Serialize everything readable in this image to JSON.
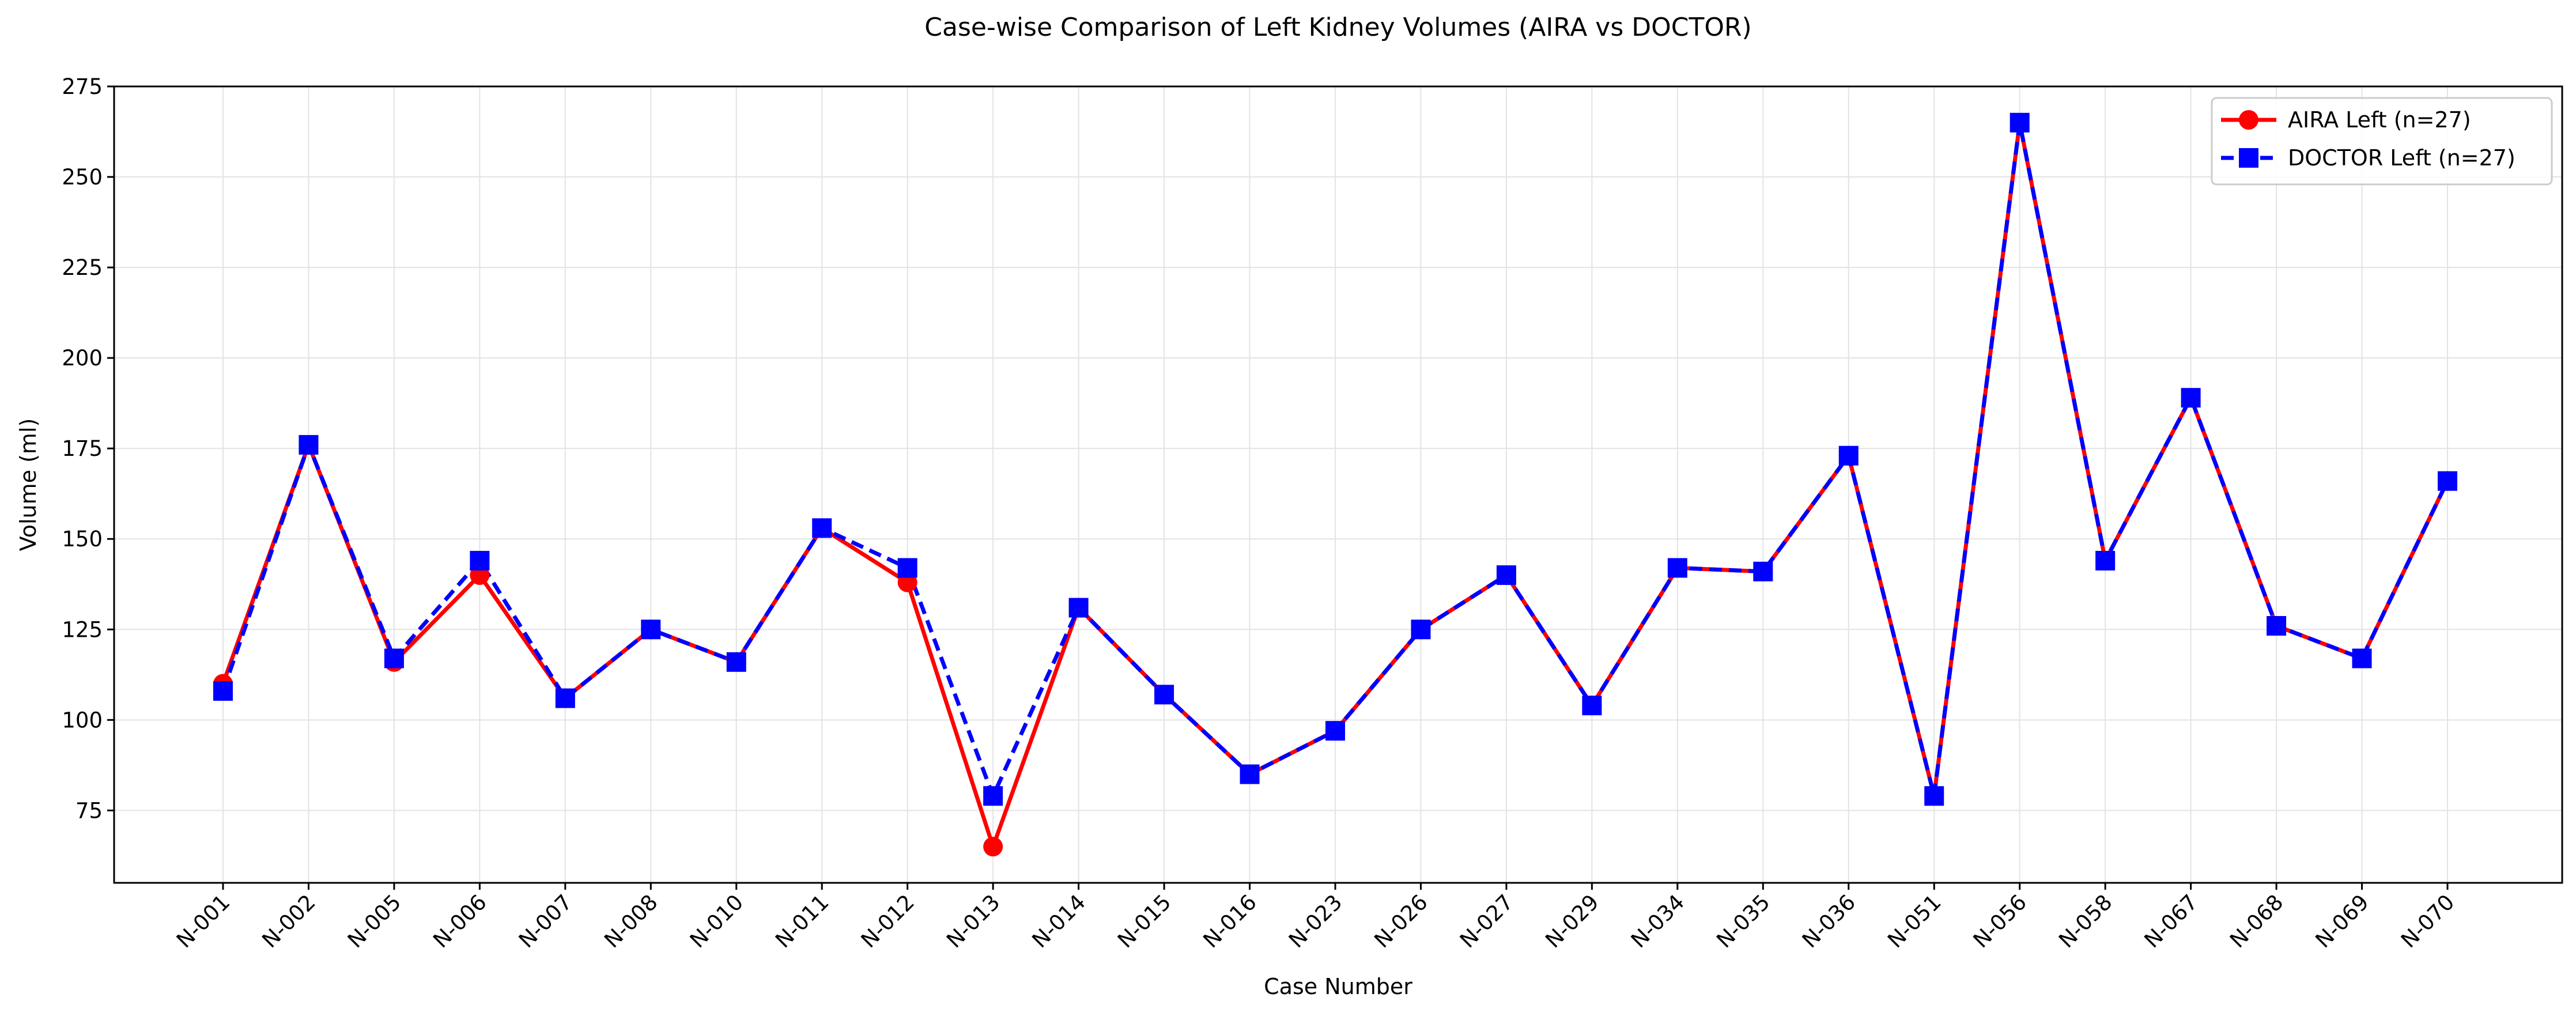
{
  "chart_data": {
    "type": "line",
    "title": "Case-wise Comparison of Left Kidney Volumes (AIRA vs DOCTOR)",
    "xlabel": "Case Number",
    "ylabel": "Volume (ml)",
    "ylim": [
      55,
      275
    ],
    "yticks": [
      75,
      100,
      125,
      150,
      175,
      200,
      225,
      250,
      275
    ],
    "grid": true,
    "legend_position": "top-right",
    "categories": [
      "N-001",
      "N-002",
      "N-005",
      "N-006",
      "N-007",
      "N-008",
      "N-010",
      "N-011",
      "N-012",
      "N-013",
      "N-014",
      "N-015",
      "N-016",
      "N-023",
      "N-026",
      "N-027",
      "N-029",
      "N-034",
      "N-035",
      "N-036",
      "N-051",
      "N-056",
      "N-058",
      "N-067",
      "N-068",
      "N-069",
      "N-070"
    ],
    "series": [
      {
        "name": "AIRA Left (n=27)",
        "color": "#ff0000",
        "marker": "circle",
        "line_style": "solid",
        "values": [
          110,
          176,
          116,
          140,
          106,
          125,
          116,
          153,
          138,
          65,
          131,
          107,
          85,
          97,
          125,
          140,
          104,
          142,
          141,
          173,
          79,
          265,
          144,
          189,
          126,
          117,
          166
        ]
      },
      {
        "name": "DOCTOR Left (n=27)",
        "color": "#0000ff",
        "marker": "square",
        "line_style": "dashed",
        "values": [
          108,
          176,
          117,
          144,
          106,
          125,
          116,
          153,
          142,
          79,
          131,
          107,
          85,
          97,
          125,
          140,
          104,
          142,
          141,
          173,
          79,
          265,
          144,
          189,
          126,
          117,
          166
        ]
      }
    ]
  }
}
